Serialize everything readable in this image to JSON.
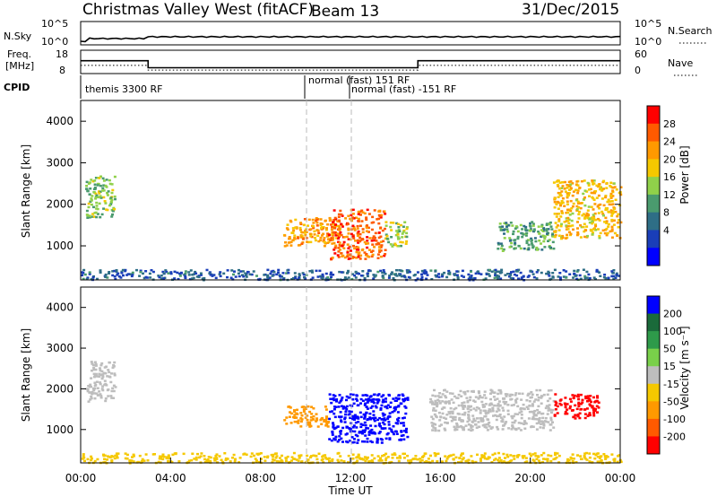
{
  "header": {
    "radar": "Christmas Valley West (fitACF)",
    "beam": "Beam 13",
    "date": "31/Dec/2015"
  },
  "panels": {
    "nsky_label": "N.Sky",
    "nsearch_label": "N.Search",
    "freq_label_1": "Freq.",
    "freq_label_2": "[MHz]",
    "nave_label": "Nave",
    "cpid_label": "CPID",
    "nsky_ticks": [
      "10^5",
      "10^0"
    ],
    "nsearch_ticks": [
      "10^5",
      "10^0"
    ],
    "freq_ticks": [
      "18",
      "8"
    ],
    "nave_ticks": [
      "60",
      "0"
    ]
  },
  "cpid": {
    "segments": [
      {
        "label": "themis 3300 RF",
        "start": 0,
        "end": 10
      },
      {
        "label": "normal (fast) 151 RF",
        "start": 10,
        "end": 12
      },
      {
        "label": "normal (fast) -151 RF",
        "start": 12,
        "end": 24
      }
    ]
  },
  "power_panel": {
    "ylabel": "Slant Range [km]",
    "cbar_label": "Power [dB]",
    "cbar_ticks": [
      "28",
      "24",
      "20",
      "16",
      "12",
      "8",
      "4"
    ],
    "cbar_colors": [
      "#ff0000",
      "#ff5a00",
      "#ff9900",
      "#f5c800",
      "#90d14a",
      "#4a9b6e",
      "#2e6e86",
      "#1a3eb8",
      "#0000ff"
    ]
  },
  "velocity_panel": {
    "ylabel": "Slant Range [km]",
    "cbar_label": "Velocity [m s⁻¹]",
    "cbar_ticks": [
      "200",
      "100",
      "50",
      "15",
      "-15",
      "-50",
      "-100",
      "-200"
    ],
    "cbar_colors": [
      "#0000ff",
      "#1a6a3a",
      "#2e9a4a",
      "#79d04a",
      "#bdbdbd",
      "#f5c800",
      "#ff9900",
      "#ff5a00",
      "#ff0000"
    ]
  },
  "xaxis": {
    "label": "Time UT",
    "ticks": [
      "00:00",
      "04:00",
      "08:00",
      "12:00",
      "16:00",
      "20:00",
      "00:00"
    ]
  },
  "chart_data": {
    "type": "heatmap",
    "title": "Christmas Valley West (fitACF) Beam 13 31/Dec/2015",
    "xlabel": "Time UT",
    "xlim": [
      0,
      24
    ],
    "ylim": [
      180,
      4500
    ],
    "yticks": [
      1000,
      2000,
      3000,
      4000
    ],
    "frequency_mhz": [
      {
        "start": 0,
        "end": 3,
        "value": 13.5
      },
      {
        "start": 3,
        "end": 15,
        "value": 10.5
      },
      {
        "start": 15,
        "end": 24,
        "value": 13.5
      }
    ],
    "power_regions_db": [
      {
        "t0": 0.2,
        "t1": 1.5,
        "r0": 1700,
        "r1": 2700,
        "value": 14
      },
      {
        "t0": 9.0,
        "t1": 11.5,
        "r0": 1000,
        "r1": 1700,
        "value": 22
      },
      {
        "t0": 11.0,
        "t1": 13.5,
        "r0": 700,
        "r1": 1900,
        "value": 26
      },
      {
        "t0": 13.5,
        "t1": 14.5,
        "r0": 1000,
        "r1": 1600,
        "value": 16
      },
      {
        "t0": 18.5,
        "t1": 21.0,
        "r0": 900,
        "r1": 1600,
        "value": 12
      },
      {
        "t0": 21.0,
        "t1": 24.0,
        "r0": 1200,
        "r1": 2600,
        "value": 20
      },
      {
        "t0": 0.0,
        "t1": 24.0,
        "r0": 200,
        "r1": 450,
        "value": 6
      }
    ],
    "velocity_regions_ms": [
      {
        "t0": 0.2,
        "t1": 1.5,
        "r0": 1700,
        "r1": 2700,
        "value": 0
      },
      {
        "t0": 9.0,
        "t1": 11.0,
        "r0": 1100,
        "r1": 1600,
        "value": -60
      },
      {
        "t0": 11.0,
        "t1": 14.5,
        "r0": 700,
        "r1": 1900,
        "value": 220
      },
      {
        "t0": 15.5,
        "t1": 21.0,
        "r0": 1000,
        "r1": 2000,
        "value": 0
      },
      {
        "t0": 21.0,
        "t1": 23.0,
        "r0": 1300,
        "r1": 1900,
        "value": -220
      },
      {
        "t0": 0.0,
        "t1": 24.0,
        "r0": 200,
        "r1": 450,
        "value": -20
      }
    ]
  }
}
